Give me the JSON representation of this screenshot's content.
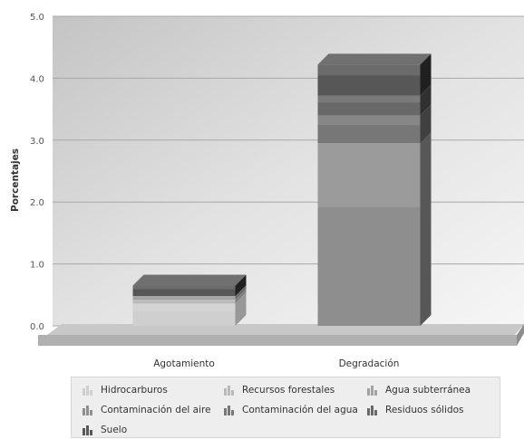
{
  "chart_data": {
    "type": "bar",
    "stacked": true,
    "categories": [
      "Agotamiento",
      "Degradación"
    ],
    "ylabel": "Porcentajes",
    "xlabel": "",
    "ylim": [
      0,
      5
    ],
    "yticks": [
      "0.0",
      "1.0",
      "2.0",
      "3.0",
      "4.0",
      "5.0"
    ],
    "grid": true,
    "legend_position": "bottom",
    "series": [
      {
        "name": "Hidrocarburos",
        "values": [
          0.36,
          0.0
        ],
        "color": "#cfcfcf"
      },
      {
        "name": "Recursos forestales",
        "values": [
          0.06,
          0.0
        ],
        "color": "#b9b9b9"
      },
      {
        "name": "Agua subterránea",
        "values": [
          0.06,
          0.0
        ],
        "color": "#a2a2a2"
      },
      {
        "name": "Contaminación del aire",
        "values": [
          0.0,
          2.95
        ],
        "color": "#8e8e8e"
      },
      {
        "name": "Contaminación del agua",
        "values": [
          0.0,
          0.45
        ],
        "color": "#777777"
      },
      {
        "name": "Residuos sólidos",
        "values": [
          0.0,
          0.32
        ],
        "color": "#686868"
      },
      {
        "name": "Suelo",
        "values": [
          0.17,
          0.5
        ],
        "color": "#575757"
      }
    ]
  }
}
